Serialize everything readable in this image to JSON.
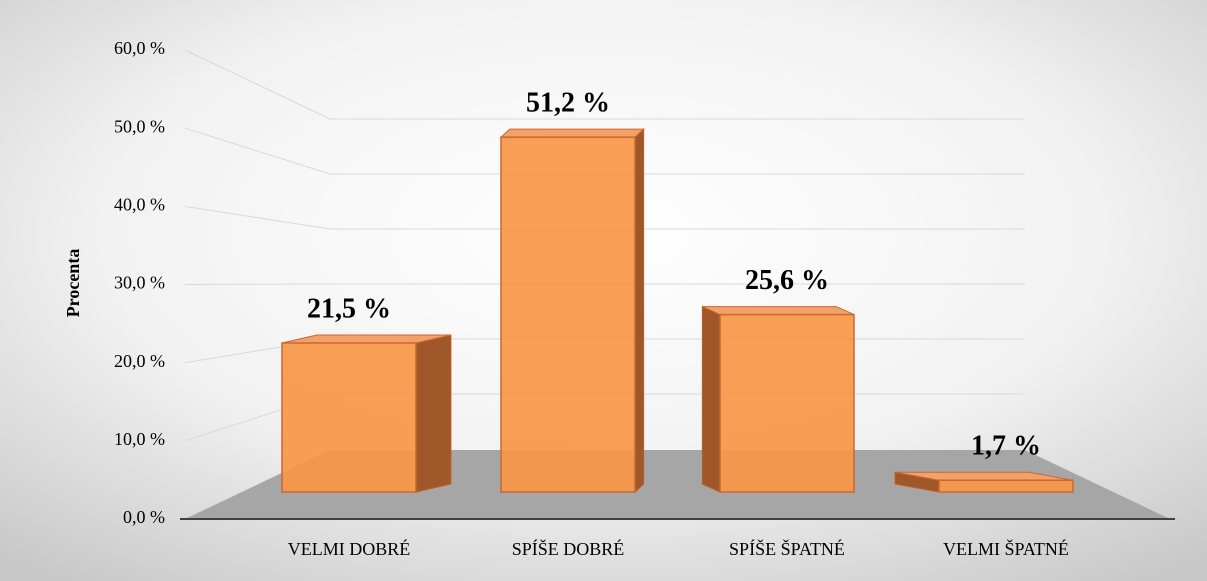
{
  "chart_data": {
    "type": "bar",
    "ylabel": "Procenta",
    "categories": [
      "VELMI DOBRÉ",
      "SPÍŠE DOBRÉ",
      "SPÍŠE ŠPATNÉ",
      "VELMI ŠPATNÉ"
    ],
    "values": [
      21.5,
      51.2,
      25.6,
      1.7
    ],
    "value_labels": [
      "21,5 %",
      "51,2 %",
      "25,6 %",
      "1,7 %"
    ],
    "color": "#f79646",
    "ylim": [
      0,
      60
    ],
    "yticks": [
      {
        "value": 0,
        "label": "0,0 %"
      },
      {
        "value": 10,
        "label": "10,0 %"
      },
      {
        "value": 20,
        "label": "20,0 %"
      },
      {
        "value": 30,
        "label": "30,0 %"
      },
      {
        "value": 40,
        "label": "40,0 %"
      },
      {
        "value": 50,
        "label": "50,0 %"
      },
      {
        "value": 60,
        "label": "60,0 %"
      }
    ],
    "grid": true
  }
}
